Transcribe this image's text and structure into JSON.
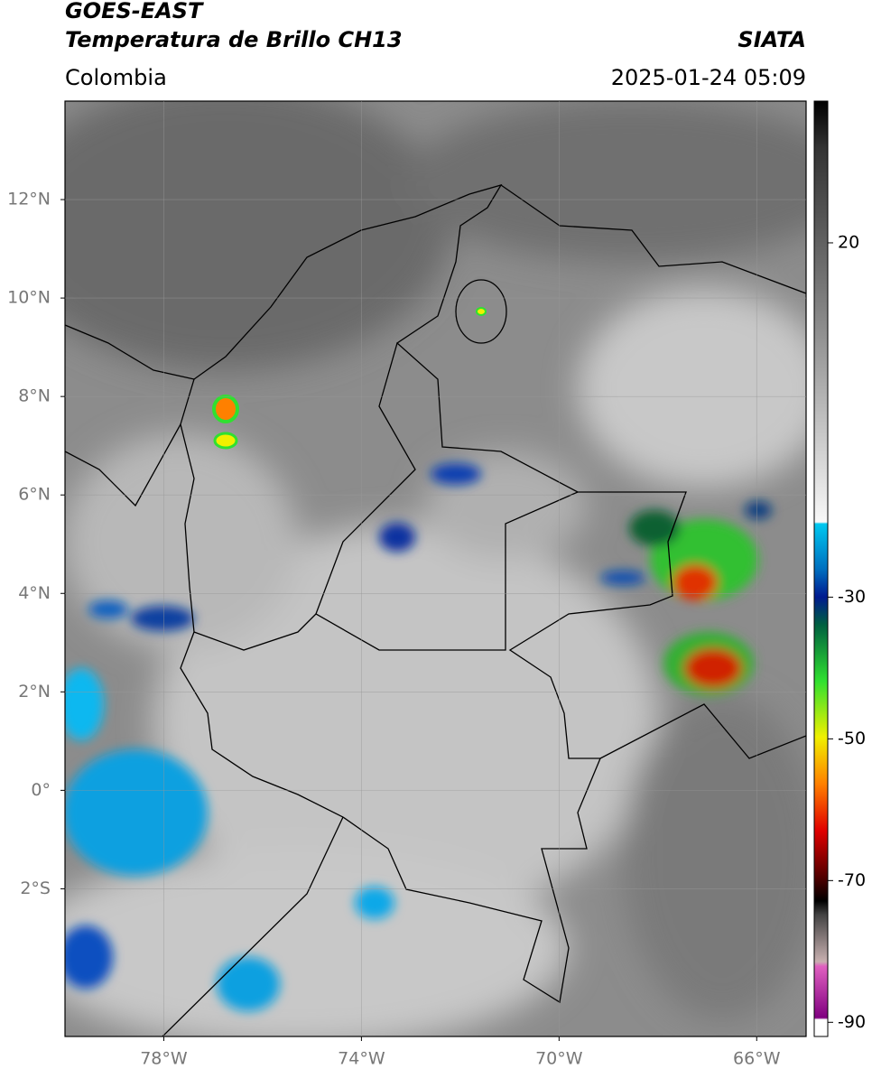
{
  "header": {
    "satellite": "GOES-EAST",
    "product": "Temperatura de Brillo CH13",
    "source": "SIATA",
    "region": "Colombia",
    "datetime": "2025-01-24 05:09"
  },
  "map": {
    "lon_range": [
      -80,
      -65
    ],
    "lat_range": [
      -5,
      14
    ],
    "lon_ticks": [
      {
        "value": -78,
        "label": "78°W"
      },
      {
        "value": -74,
        "label": "74°W"
      },
      {
        "value": -70,
        "label": "70°W"
      },
      {
        "value": -66,
        "label": "66°W"
      }
    ],
    "lat_ticks": [
      {
        "value": 12,
        "label": "12°N"
      },
      {
        "value": 10,
        "label": "10°N"
      },
      {
        "value": 8,
        "label": "8°N"
      },
      {
        "value": 6,
        "label": "6°N"
      },
      {
        "value": 4,
        "label": "4°N"
      },
      {
        "value": 2,
        "label": "2°N"
      },
      {
        "value": 0,
        "label": "0°"
      },
      {
        "value": -2,
        "label": "2°S"
      }
    ]
  },
  "colorbar": {
    "range": [
      -92,
      40
    ],
    "ticks": [
      20,
      -30,
      -50,
      -70,
      -90
    ]
  }
}
